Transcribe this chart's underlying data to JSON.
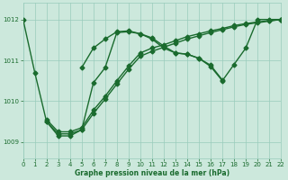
{
  "bg_color": "#cce8dc",
  "grid_color": "#99ccbb",
  "line_color": "#1a6b2e",
  "marker": "D",
  "markersize": 2.5,
  "linewidth": 1.0,
  "xlim": [
    0,
    22
  ],
  "ylim": [
    1008.6,
    1012.4
  ],
  "yticks": [
    1009,
    1010,
    1011,
    1012
  ],
  "xticks": [
    0,
    1,
    2,
    3,
    4,
    5,
    6,
    7,
    8,
    9,
    10,
    11,
    12,
    13,
    14,
    15,
    16,
    17,
    18,
    19,
    20,
    21,
    22
  ],
  "xlabel": "Graphe pression niveau de la mer (hPa)",
  "line1": {
    "x": [
      0,
      1,
      2,
      3,
      4,
      5,
      6,
      7,
      8,
      9,
      10,
      11,
      12,
      13,
      14,
      15,
      16,
      17,
      18,
      19,
      20,
      21,
      22
    ],
    "y": [
      1012.0,
      1010.7,
      1009.5,
      1009.15,
      1009.15,
      1009.3,
      1010.45,
      1010.82,
      1011.68,
      1011.7,
      1011.65,
      1011.52,
      1011.3,
      1011.18,
      1011.15,
      1011.05,
      1010.85,
      1010.5,
      1010.9,
      1011.3,
      1012.0,
      1012.0,
      1012.0
    ]
  },
  "line2": {
    "x": [
      5,
      6,
      7,
      8,
      9,
      10,
      11,
      12,
      13,
      14,
      15,
      16,
      17
    ],
    "y": [
      1010.82,
      1011.3,
      1011.52,
      1011.7,
      1011.72,
      1011.65,
      1011.55,
      1011.35,
      1011.18,
      1011.15,
      1011.05,
      1010.88,
      1010.52
    ]
  },
  "line3": {
    "x": [
      2,
      3,
      4,
      5,
      6,
      7,
      8,
      9,
      10,
      11,
      12,
      13,
      14,
      15,
      16,
      17,
      18,
      19,
      20,
      21,
      22
    ],
    "y": [
      1009.5,
      1009.2,
      1009.2,
      1009.3,
      1009.7,
      1010.05,
      1010.42,
      1010.78,
      1011.1,
      1011.22,
      1011.32,
      1011.42,
      1011.52,
      1011.6,
      1011.68,
      1011.75,
      1011.82,
      1011.88,
      1011.92,
      1011.96,
      1012.0
    ]
  },
  "line4": {
    "x": [
      2,
      3,
      4,
      5,
      6,
      7,
      8,
      9,
      10,
      11,
      12,
      13,
      14,
      15,
      16,
      17,
      18,
      19,
      20,
      21,
      22
    ],
    "y": [
      1009.55,
      1009.25,
      1009.25,
      1009.35,
      1009.78,
      1010.12,
      1010.5,
      1010.86,
      1011.18,
      1011.3,
      1011.38,
      1011.48,
      1011.58,
      1011.65,
      1011.72,
      1011.78,
      1011.85,
      1011.9,
      1011.94,
      1011.97,
      1012.0
    ]
  }
}
